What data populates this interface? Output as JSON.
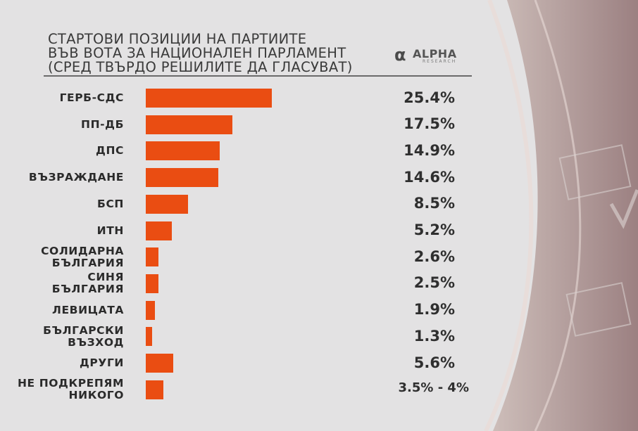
{
  "title_lines": [
    "СТАРТОВИ ПОЗИЦИИ НА ПАРТИИТЕ",
    "ВЪВ ВОТА ЗА НАЦИОНАЛЕН ПАРЛАМЕНТ",
    "(СРЕД ТВЪРДО РЕШИЛИТЕ ДА ГЛАСУВАТ)"
  ],
  "logo": {
    "name": "ALPHA",
    "sub": "RESEARCH"
  },
  "colors": {
    "bar": "#ea4d12",
    "background": "#e3e2e3"
  },
  "chart_data": {
    "type": "bar",
    "orientation": "horizontal",
    "title": "СТАРТОВИ ПОЗИЦИИ НА ПАРТИИТЕ ВЪВ ВОТА ЗА НАЦИОНАЛЕН ПАРЛАМЕНТ (СРЕД ТВЪРДО РЕШИЛИТЕ ДА ГЛАСУВАТ)",
    "unit": "%",
    "categories": [
      [
        "ГЕРБ-СДС"
      ],
      [
        "ПП-ДБ"
      ],
      [
        "ДПС"
      ],
      [
        "ВЪЗРАЖДАНЕ"
      ],
      [
        "БСП"
      ],
      [
        "ИТН"
      ],
      [
        "СОЛИДАРНА",
        "БЪЛГАРИЯ"
      ],
      [
        "СИНЯ",
        "БЪЛГАРИЯ"
      ],
      [
        "ЛЕВИЦАТА"
      ],
      [
        "БЪЛГАРСКИ",
        "ВЪЗХОД"
      ],
      [
        "ДРУГИ"
      ],
      [
        "НЕ ПОДКРЕПЯМ",
        "НИКОГО"
      ]
    ],
    "values": [
      25.4,
      17.5,
      14.9,
      14.6,
      8.5,
      5.2,
      2.6,
      2.5,
      1.9,
      1.3,
      5.6,
      3.5
    ],
    "value_labels": [
      "25.4%",
      "17.5%",
      "14.9%",
      "14.6%",
      "8.5%",
      "5.2%",
      "2.6%",
      "2.5%",
      "1.9%",
      "1.3%",
      "5.6%",
      "3.5% - 4%"
    ],
    "xlim": [
      0,
      25.4
    ],
    "grid": false,
    "legend": "none"
  }
}
